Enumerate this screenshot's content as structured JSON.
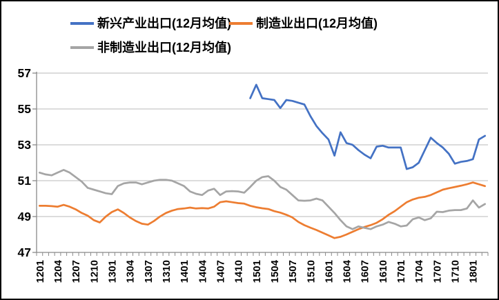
{
  "chart_data": {
    "type": "line",
    "title": "",
    "legend_position": "top",
    "grid": "horizontal",
    "ylim": [
      47,
      57
    ],
    "y_ticks": [
      47,
      49,
      51,
      53,
      55,
      57
    ],
    "x_categories": [
      "1201",
      "1202",
      "1203",
      "1204",
      "1205",
      "1206",
      "1207",
      "1208",
      "1209",
      "1210",
      "1211",
      "1212",
      "1301",
      "1302",
      "1303",
      "1304",
      "1305",
      "1306",
      "1307",
      "1308",
      "1309",
      "1310",
      "1311",
      "1312",
      "1401",
      "1402",
      "1403",
      "1404",
      "1405",
      "1406",
      "1407",
      "1408",
      "1409",
      "1410",
      "1411",
      "1412",
      "1501",
      "1502",
      "1503",
      "1504",
      "1505",
      "1506",
      "1507",
      "1508",
      "1509",
      "1510",
      "1511",
      "1512",
      "1601",
      "1602",
      "1603",
      "1604",
      "1605",
      "1606",
      "1607",
      "1608",
      "1609",
      "1610",
      "1611",
      "1612",
      "1701",
      "1702",
      "1703",
      "1704",
      "1705",
      "1706",
      "1707",
      "1708",
      "1709",
      "1710",
      "1711",
      "1712",
      "1801",
      "1802",
      "1803"
    ],
    "x_tick_labels": [
      "1201",
      "1204",
      "1207",
      "1210",
      "1301",
      "1304",
      "1307",
      "1310",
      "1401",
      "1404",
      "1407",
      "1410",
      "1501",
      "1504",
      "1507",
      "1510",
      "1601",
      "1604",
      "1607",
      "1610",
      "1701",
      "1704",
      "1707",
      "1710",
      "1801"
    ],
    "series": [
      {
        "id": "emerging-industry-exports",
        "name": "新兴产业出口(12月均值)",
        "color": "#4472C4",
        "start_index": 35,
        "values": [
          55.6,
          56.35,
          55.6,
          55.55,
          55.5,
          55.05,
          55.5,
          55.45,
          55.35,
          55.25,
          54.6,
          54.05,
          53.65,
          53.3,
          52.4,
          53.7,
          53.1,
          53.0,
          52.7,
          52.45,
          52.25,
          52.9,
          52.95,
          52.85,
          52.85,
          52.85,
          51.65,
          51.75,
          52.0,
          52.7,
          53.4,
          53.1,
          52.85,
          52.5,
          51.95,
          52.05,
          52.1,
          52.2,
          53.3,
          53.5
        ]
      },
      {
        "id": "manufacturing-exports",
        "name": "制造业出口(12月均值)",
        "color": "#ED7D31",
        "start_index": 0,
        "values": [
          49.6,
          49.6,
          49.58,
          49.55,
          49.65,
          49.55,
          49.4,
          49.2,
          49.05,
          48.8,
          48.67,
          49.0,
          49.25,
          49.4,
          49.2,
          48.95,
          48.75,
          48.6,
          48.55,
          48.75,
          49.0,
          49.2,
          49.33,
          49.42,
          49.45,
          49.5,
          49.45,
          49.47,
          49.45,
          49.55,
          49.8,
          49.85,
          49.8,
          49.75,
          49.72,
          49.6,
          49.52,
          49.46,
          49.42,
          49.3,
          49.22,
          49.1,
          48.95,
          48.7,
          48.52,
          48.38,
          48.25,
          48.1,
          47.95,
          47.8,
          47.87,
          48.0,
          48.15,
          48.3,
          48.42,
          48.52,
          48.65,
          48.85,
          49.1,
          49.3,
          49.55,
          49.8,
          49.95,
          50.05,
          50.1,
          50.2,
          50.35,
          50.5,
          50.58,
          50.65,
          50.72,
          50.8,
          50.9,
          50.8,
          50.7
        ]
      },
      {
        "id": "non-manufacturing-exports",
        "name": "非制造业出口(12月均值)",
        "color": "#A5A5A5",
        "start_index": 0,
        "values": [
          51.45,
          51.35,
          51.3,
          51.45,
          51.6,
          51.45,
          51.2,
          50.95,
          50.6,
          50.5,
          50.4,
          50.3,
          50.25,
          50.7,
          50.85,
          50.9,
          50.9,
          50.8,
          50.9,
          51.0,
          51.05,
          51.05,
          51.0,
          50.85,
          50.7,
          50.4,
          50.27,
          50.2,
          50.45,
          50.55,
          50.2,
          50.4,
          50.42,
          50.4,
          50.33,
          50.65,
          51.0,
          51.2,
          51.25,
          51.0,
          50.65,
          50.5,
          50.2,
          49.9,
          49.88,
          49.9,
          50.0,
          49.9,
          49.55,
          49.2,
          48.8,
          48.45,
          48.3,
          48.45,
          48.37,
          48.3,
          48.45,
          48.55,
          48.7,
          48.6,
          48.45,
          48.5,
          48.85,
          48.95,
          48.8,
          48.9,
          49.27,
          49.25,
          49.33,
          49.36,
          49.36,
          49.45,
          49.9,
          49.5,
          49.7
        ]
      }
    ],
    "style": {
      "gridline_color": "#C6C6C6",
      "axis_color": "#898989",
      "text_color": "#000000",
      "background": "#FFFFFF",
      "line_width": 2.75
    }
  },
  "legend": {
    "items": [
      {
        "series": 0
      },
      {
        "series": 1
      },
      {
        "series": 2
      }
    ]
  }
}
